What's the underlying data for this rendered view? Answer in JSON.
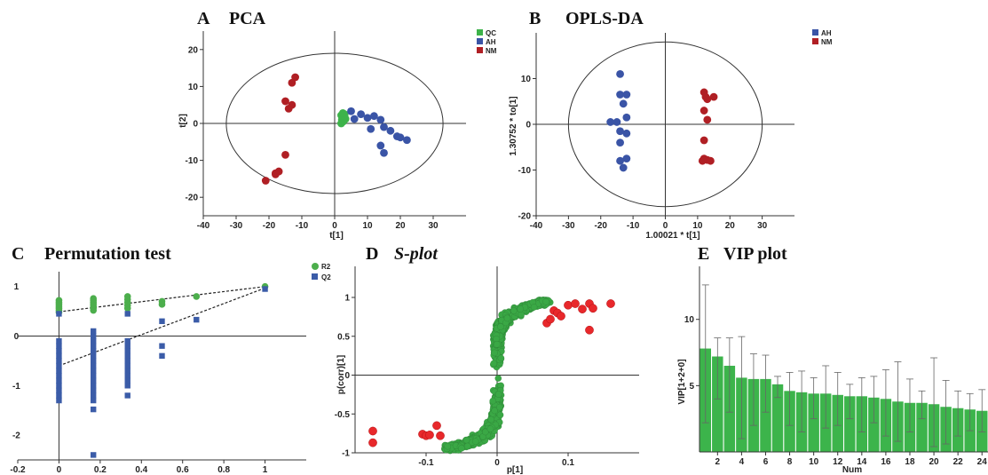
{
  "colors": {
    "qc": "#3db34a",
    "ah": "#3a54a6",
    "nm": "#b01f24",
    "r2": "#4cae4c",
    "q2": "#3b5ca8",
    "splot_green": "#3aa845",
    "splot_red": "#e8282b",
    "vip_bar": "#3cb44b"
  },
  "chart_data": [
    {
      "id": "pca",
      "type": "scatter",
      "letter": "A",
      "title": "PCA",
      "xlabel": "t[1]",
      "ylabel": "t[2]",
      "xlim": [
        -40,
        40
      ],
      "ylim": [
        -25,
        25
      ],
      "xticks": [
        -40,
        -30,
        -20,
        -10,
        0,
        10,
        20,
        30
      ],
      "yticks": [
        -20,
        -10,
        0,
        10,
        20
      ],
      "ellipse": {
        "rx": 33,
        "ry": 19
      },
      "legend": [
        "QC",
        "AH",
        "NM"
      ],
      "series": [
        {
          "name": "QC",
          "color_key": "qc",
          "points": [
            [
              2,
              2.2
            ],
            [
              2.5,
              1.8
            ],
            [
              3,
              1.5
            ],
            [
              2.2,
              1
            ],
            [
              3,
              2.5
            ],
            [
              2.6,
              0.5
            ],
            [
              3.3,
              1.2
            ],
            [
              2,
              0
            ],
            [
              3,
              2
            ],
            [
              2.5,
              2.8
            ]
          ]
        },
        {
          "name": "AH",
          "color_key": "ah",
          "points": [
            [
              5,
              3.3
            ],
            [
              8,
              2.5
            ],
            [
              10,
              1.5
            ],
            [
              12,
              2
            ],
            [
              14,
              1
            ],
            [
              15,
              -1
            ],
            [
              17,
              -2
            ],
            [
              19,
              -3.5
            ],
            [
              20,
              -3.8
            ],
            [
              22,
              -4.5
            ],
            [
              6,
              1.2
            ],
            [
              11,
              -1.5
            ],
            [
              14,
              -6
            ],
            [
              15,
              -8
            ]
          ]
        },
        {
          "name": "NM",
          "color_key": "nm",
          "points": [
            [
              -12,
              12.5
            ],
            [
              -13,
              11
            ],
            [
              -15,
              6
            ],
            [
              -14,
              4
            ],
            [
              -13,
              5
            ],
            [
              -15,
              -8.5
            ],
            [
              -17,
              -13
            ],
            [
              -18,
              -13.5
            ],
            [
              -18,
              -13.8
            ],
            [
              -21,
              -15.5
            ]
          ]
        }
      ]
    },
    {
      "id": "oplsda",
      "type": "scatter",
      "letter": "B",
      "title": "OPLS-DA",
      "xlabel": "1.00021 * t[1]",
      "ylabel": "1.30752 * to[1]",
      "xlim": [
        -40,
        40
      ],
      "ylim": [
        -20,
        20
      ],
      "xticks": [
        -40,
        -30,
        -20,
        -10,
        0,
        10,
        20,
        30
      ],
      "yticks": [
        -20,
        -10,
        0,
        10
      ],
      "ellipse": {
        "rx": 30,
        "ry": 18
      },
      "legend": [
        "AH",
        "NM"
      ],
      "series": [
        {
          "name": "AH",
          "color_key": "ah",
          "points": [
            [
              -14,
              11
            ],
            [
              -14,
              6.5
            ],
            [
              -12,
              6.5
            ],
            [
              -13,
              4.5
            ],
            [
              -12,
              1.5
            ],
            [
              -17,
              0.5
            ],
            [
              -14,
              -1.5
            ],
            [
              -12,
              -2
            ],
            [
              -14,
              -4
            ],
            [
              -12,
              -7.5
            ],
            [
              -14,
              -8
            ],
            [
              -13,
              -9.5
            ],
            [
              -15,
              0.5
            ]
          ]
        },
        {
          "name": "NM",
          "color_key": "nm",
          "points": [
            [
              12,
              7
            ],
            [
              12.5,
              6
            ],
            [
              13,
              5.5
            ],
            [
              15,
              6
            ],
            [
              12,
              3
            ],
            [
              13,
              1
            ],
            [
              12,
              -3.5
            ],
            [
              12,
              -7.5
            ],
            [
              13,
              -7.8
            ],
            [
              14,
              -8
            ],
            [
              11.5,
              -8
            ]
          ]
        }
      ]
    },
    {
      "id": "permutation",
      "type": "scatter",
      "letter": "C",
      "title": "Permutation test",
      "xlabel": "",
      "ylabel": "",
      "xlim": [
        -0.2,
        1.2
      ],
      "ylim": [
        -2.5,
        1.3
      ],
      "xticks": [
        -0.2,
        0,
        0.2,
        0.4,
        0.6,
        0.8,
        1
      ],
      "xtick_labels": [
        "-0.2",
        "0",
        "0.2",
        "0.4",
        "0.6",
        "0.8",
        "1"
      ],
      "yticks": [
        -2,
        -1,
        0,
        1
      ],
      "legend": [
        "R2",
        "Q2"
      ],
      "regression_lines": [
        {
          "name": "R2",
          "from": [
            0,
            0.49
          ],
          "to": [
            1,
            1.0
          ]
        },
        {
          "name": "Q2",
          "from": [
            0,
            -0.6
          ],
          "to": [
            1,
            0.97
          ]
        }
      ],
      "series": [
        {
          "name": "R2",
          "color_key": "r2",
          "marker": "circle",
          "points": [
            [
              0,
              0.72
            ],
            [
              0,
              0.68
            ],
            [
              0,
              0.64
            ],
            [
              0,
              0.6
            ],
            [
              0,
              0.56
            ],
            [
              0,
              0.52
            ],
            [
              0,
              0.48
            ],
            [
              0.167,
              0.76
            ],
            [
              0.167,
              0.72
            ],
            [
              0.167,
              0.68
            ],
            [
              0.167,
              0.64
            ],
            [
              0.167,
              0.6
            ],
            [
              0.167,
              0.56
            ],
            [
              0.167,
              0.52
            ],
            [
              0.333,
              0.8
            ],
            [
              0.333,
              0.74
            ],
            [
              0.333,
              0.68
            ],
            [
              0.333,
              0.62
            ],
            [
              0.333,
              0.56
            ],
            [
              0.5,
              0.7
            ],
            [
              0.5,
              0.64
            ],
            [
              0.667,
              0.8
            ],
            [
              1,
              1.0
            ]
          ]
        },
        {
          "name": "Q2",
          "color_key": "q2",
          "marker": "square",
          "points": [
            [
              0,
              0.45
            ],
            [
              0,
              -0.1
            ],
            [
              0,
              -0.2
            ],
            [
              0,
              -0.3
            ],
            [
              0,
              -0.4
            ],
            [
              0,
              -0.5
            ],
            [
              0,
              -0.6
            ],
            [
              0,
              -0.7
            ],
            [
              0,
              -0.8
            ],
            [
              0,
              -0.9
            ],
            [
              0,
              -1.0
            ],
            [
              0,
              -1.1
            ],
            [
              0,
              -1.2
            ],
            [
              0,
              -1.3
            ],
            [
              0.167,
              0.1
            ],
            [
              0.167,
              0.0
            ],
            [
              0.167,
              -0.1
            ],
            [
              0.167,
              -0.2
            ],
            [
              0.167,
              -0.3
            ],
            [
              0.167,
              -0.4
            ],
            [
              0.167,
              -0.5
            ],
            [
              0.167,
              -0.6
            ],
            [
              0.167,
              -0.7
            ],
            [
              0.167,
              -0.8
            ],
            [
              0.167,
              -0.9
            ],
            [
              0.167,
              -1.0
            ],
            [
              0.167,
              -1.1
            ],
            [
              0.167,
              -1.2
            ],
            [
              0.167,
              -1.3
            ],
            [
              0.167,
              -1.48
            ],
            [
              0.167,
              -2.4
            ],
            [
              0.333,
              0.45
            ],
            [
              0.333,
              -0.1
            ],
            [
              0.333,
              -0.2
            ],
            [
              0.333,
              -0.3
            ],
            [
              0.333,
              -0.4
            ],
            [
              0.333,
              -0.5
            ],
            [
              0.333,
              -0.6
            ],
            [
              0.333,
              -0.7
            ],
            [
              0.333,
              -0.8
            ],
            [
              0.333,
              -0.9
            ],
            [
              0.333,
              -1.0
            ],
            [
              0.333,
              -1.2
            ],
            [
              0.5,
              0.3
            ],
            [
              0.5,
              -0.2
            ],
            [
              0.5,
              -0.4
            ],
            [
              0.667,
              0.33
            ],
            [
              1,
              0.95
            ]
          ]
        }
      ]
    },
    {
      "id": "splot",
      "type": "scatter",
      "letter": "D",
      "title": "S-plot",
      "xlabel": "p[1]",
      "ylabel": "p(corr)[1]",
      "xlim": [
        -0.2,
        0.2
      ],
      "ylim": [
        -1,
        1.4
      ],
      "xticks": [
        -0.1,
        0,
        0.1
      ],
      "xtick_labels": [
        "-0.1",
        "0",
        "0.1"
      ],
      "yticks": [
        -1,
        -0.5,
        0,
        0.5,
        1
      ],
      "ytick_labels": [
        "-1",
        "-0.5",
        "0",
        "0.5",
        "1"
      ],
      "red_points": [
        [
          -0.175,
          -0.72
        ],
        [
          -0.175,
          -0.87
        ],
        [
          -0.105,
          -0.76
        ],
        [
          -0.1,
          -0.78
        ],
        [
          -0.095,
          -0.77
        ],
        [
          -0.085,
          -0.65
        ],
        [
          -0.08,
          -0.78
        ],
        [
          0.08,
          0.83
        ],
        [
          0.085,
          0.8
        ],
        [
          0.09,
          0.76
        ],
        [
          0.1,
          0.9
        ],
        [
          0.11,
          0.92
        ],
        [
          0.12,
          0.85
        ],
        [
          0.13,
          0.92
        ],
        [
          0.135,
          0.86
        ],
        [
          0.13,
          0.58
        ],
        [
          0.16,
          0.92
        ],
        [
          0.07,
          0.67
        ],
        [
          0.075,
          0.72
        ]
      ]
    },
    {
      "id": "vip",
      "type": "bar",
      "letter": "E",
      "title": "VIP plot",
      "xlabel": "Num",
      "ylabel": "VIP[1+2+0]",
      "xlim": [
        0.5,
        24.5
      ],
      "ylim": [
        0,
        14
      ],
      "xticks": [
        2,
        4,
        6,
        8,
        10,
        12,
        14,
        16,
        18,
        20,
        22,
        24
      ],
      "yticks": [
        5,
        10
      ],
      "categories": [
        1,
        2,
        3,
        4,
        5,
        6,
        7,
        8,
        9,
        10,
        11,
        12,
        13,
        14,
        15,
        16,
        17,
        18,
        19,
        20,
        21,
        22,
        23,
        24
      ],
      "values": [
        7.8,
        7.2,
        6.5,
        5.6,
        5.5,
        5.5,
        5.1,
        4.6,
        4.5,
        4.4,
        4.4,
        4.3,
        4.2,
        4.2,
        4.1,
        4.0,
        3.8,
        3.7,
        3.7,
        3.6,
        3.4,
        3.3,
        3.2,
        3.1
      ],
      "error_upper": [
        12.6,
        8.6,
        8.6,
        8.7,
        7.4,
        7.3,
        5.7,
        6.0,
        6.1,
        5.6,
        6.5,
        6.0,
        5.1,
        5.6,
        5.7,
        6.2,
        6.8,
        5.5,
        4.6,
        7.1,
        5.4,
        4.6,
        4.4,
        4.7
      ],
      "error_lower": [
        2.2,
        4.0,
        3.0,
        1.0,
        2.0,
        3.0,
        4.1,
        2.0,
        1.5,
        2.5,
        1.8,
        2.0,
        2.5,
        1.5,
        2.2,
        1.2,
        0.8,
        1.5,
        2.5,
        0.4,
        0.6,
        1.2,
        1.6,
        1.5
      ]
    }
  ]
}
